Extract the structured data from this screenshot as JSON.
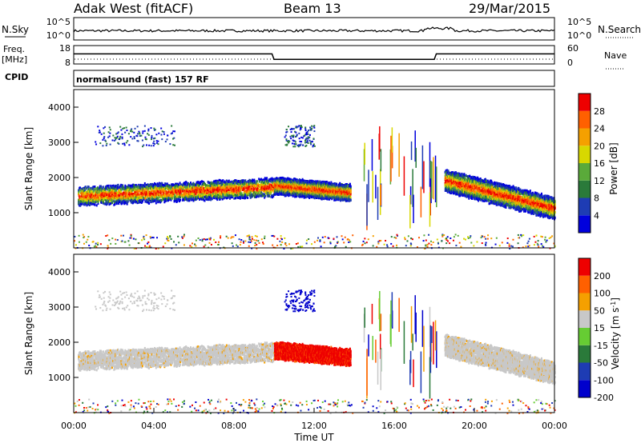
{
  "header": {
    "station": "Adak West (fitACF)",
    "beam": "Beam 13",
    "date": "29/Mar/2015"
  },
  "top_panels": {
    "nsky_label": "N.Sky",
    "nsky_ticks": [
      "10^5",
      "10^0"
    ],
    "nsearch_label": "N.Search",
    "nsearch_ticks": [
      "10^5",
      "10^0"
    ],
    "freq_label": "Freq.",
    "freq_unit": "[MHz]",
    "freq_ticks": [
      "18",
      "8"
    ],
    "nave_label": "Nave",
    "nave_ticks": [
      "60",
      "0"
    ],
    "cpid_label": "CPID",
    "cpid_text": "normalsound (fast) 157 RF"
  },
  "chart_data": [
    {
      "type": "line",
      "name": "frequency",
      "x": [
        0,
        9.9,
        10.0,
        18.0,
        18.1,
        24
      ],
      "values": [
        13.5,
        13.5,
        10.5,
        10.5,
        13.5,
        13.5
      ],
      "ylim": [
        8,
        18
      ],
      "xlim": [
        0,
        24
      ]
    },
    {
      "type": "heatmap",
      "name": "power",
      "ylabel": "Slant Range [km]",
      "yticks": [
        "1000",
        "2000",
        "3000",
        "4000"
      ],
      "ylim": [
        0,
        4500
      ],
      "xlim": [
        0,
        24
      ],
      "colorbar": {
        "label": "Power [dB]",
        "ticks": [
          "28",
          "24",
          "20",
          "16",
          "12",
          "8",
          "4"
        ],
        "colors": [
          "#0000dd",
          "#1e3cb4",
          "#2a7a3a",
          "#5aaa3a",
          "#d8d800",
          "#f5a000",
          "#ff6000",
          "#ee0000"
        ]
      },
      "bands": [
        {
          "x": [
            0.2,
            10.0
          ],
          "y_center": [
            1450,
            1700
          ],
          "y_halfwidth": 250
        },
        {
          "x": [
            10.0,
            13.8
          ],
          "y_center": [
            1750,
            1550
          ],
          "y_halfwidth": 220
        },
        {
          "x": [
            18.5,
            24.0
          ],
          "y_center": [
            1900,
            1100
          ],
          "y_halfwidth": 300
        }
      ]
    },
    {
      "type": "heatmap",
      "name": "velocity",
      "ylabel": "Slant Range [km]",
      "yticks": [
        "1000",
        "2000",
        "3000",
        "4000"
      ],
      "ylim": [
        0,
        4500
      ],
      "xlim": [
        0,
        24
      ],
      "xlabel": "Time UT",
      "xticks": [
        "00:00",
        "04:00",
        "08:00",
        "12:00",
        "16:00",
        "20:00",
        "00:00"
      ],
      "colorbar": {
        "label": "Velocity [m s",
        "label_sup": "-1",
        "label_end": "]",
        "ticks": [
          "200",
          "100",
          "50",
          "15",
          "-15",
          "-50",
          "-100",
          "-200"
        ],
        "colors": [
          "#0000cc",
          "#1e3cb4",
          "#2a7a3a",
          "#66cc33",
          "#c8c8c8",
          "#f5a000",
          "#ff6000",
          "#ee0000"
        ]
      }
    }
  ]
}
